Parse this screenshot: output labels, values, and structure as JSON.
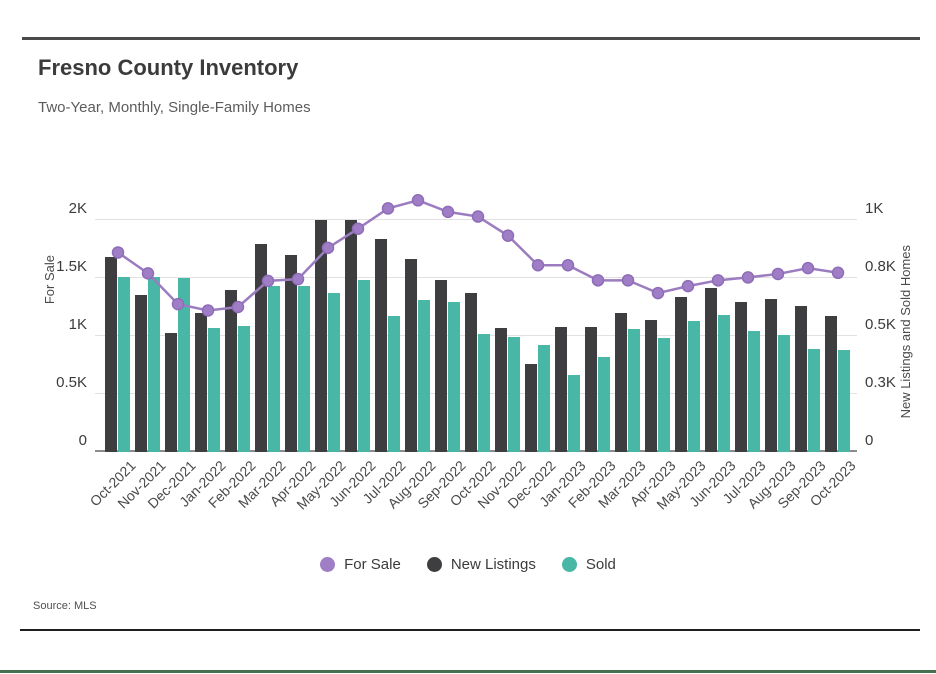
{
  "page": {
    "title": "Fresno County Inventory",
    "subtitle": "Two-Year, Monthly, Single-Family Homes",
    "source": "Source:  MLS"
  },
  "colors": {
    "for_sale_line": "#9c7cc0",
    "for_sale_point": "#a07ec6",
    "for_sale_point_stroke": "#8e6cb8",
    "new_listings_bar": "#3e3e40",
    "sold_bar": "#48b7a6",
    "grid": "#e1e1e1",
    "baseline": "#8c8c8c",
    "top_rule": "#4a4a4a",
    "bottom_rule": "#1f1f1f",
    "footer_accent": "#46704f"
  },
  "chart_data": {
    "type": "combo-bar-line",
    "title": "Fresno County Inventory",
    "subtitle": "Two-Year, Monthly, Single-Family Homes",
    "categories": [
      "Oct-2021",
      "Nov-2021",
      "Dec-2021",
      "Jan-2022",
      "Feb-2022",
      "Mar-2022",
      "Apr-2022",
      "May-2022",
      "Jun-2022",
      "Jul-2022",
      "Aug-2022",
      "Sep-2022",
      "Oct-2022",
      "Nov-2022",
      "Dec-2022",
      "Jan-2023",
      "Feb-2023",
      "Mar-2023",
      "Apr-2023",
      "May-2023",
      "Jun-2023",
      "Jul-2023",
      "Aug-2023",
      "Sep-2023",
      "Oct-2023"
    ],
    "series": [
      {
        "name": "For Sale",
        "type": "line",
        "axis": "left",
        "color": "#a07ec6",
        "values": [
          1720,
          1540,
          1275,
          1220,
          1250,
          1475,
          1490,
          1760,
          1925,
          2100,
          2170,
          2070,
          2030,
          1865,
          1610,
          1610,
          1480,
          1480,
          1370,
          1430,
          1480,
          1505,
          1535,
          1585,
          1545
        ]
      },
      {
        "name": "New Listings",
        "type": "bar",
        "axis": "right",
        "color": "#3e3e40",
        "values": [
          840,
          675,
          515,
          600,
          700,
          895,
          850,
          1000,
          1000,
          920,
          830,
          740,
          685,
          535,
          380,
          540,
          540,
          600,
          570,
          670,
          705,
          645,
          660,
          630,
          585
        ]
      },
      {
        "name": "Sold",
        "type": "bar",
        "axis": "right",
        "color": "#48b7a6",
        "values": [
          755,
          755,
          750,
          535,
          545,
          715,
          715,
          685,
          740,
          585,
          655,
          645,
          510,
          495,
          460,
          330,
          410,
          530,
          490,
          565,
          590,
          520,
          505,
          445,
          440
        ]
      }
    ],
    "left_axis": {
      "label": "For Sale",
      "ticks": [
        "2K",
        "1.5K",
        "1K",
        "0.5K",
        "0"
      ],
      "tick_values": [
        2000,
        1500,
        1000,
        500,
        0
      ],
      "max": 2000
    },
    "right_axis": {
      "label": "New Listings and Sold Homes",
      "ticks": [
        "1K",
        "0.8K",
        "0.5K",
        "0.3K",
        "0"
      ],
      "tick_values": [
        1000,
        750,
        500,
        250,
        0
      ],
      "max": 1000
    },
    "legend": [
      {
        "label": "For Sale",
        "color": "#a07ec6"
      },
      {
        "label": "New Listings",
        "color": "#3e3e40"
      },
      {
        "label": "Sold",
        "color": "#48b7a6"
      }
    ],
    "grid": true,
    "legend_position": "bottom",
    "source": "MLS"
  }
}
